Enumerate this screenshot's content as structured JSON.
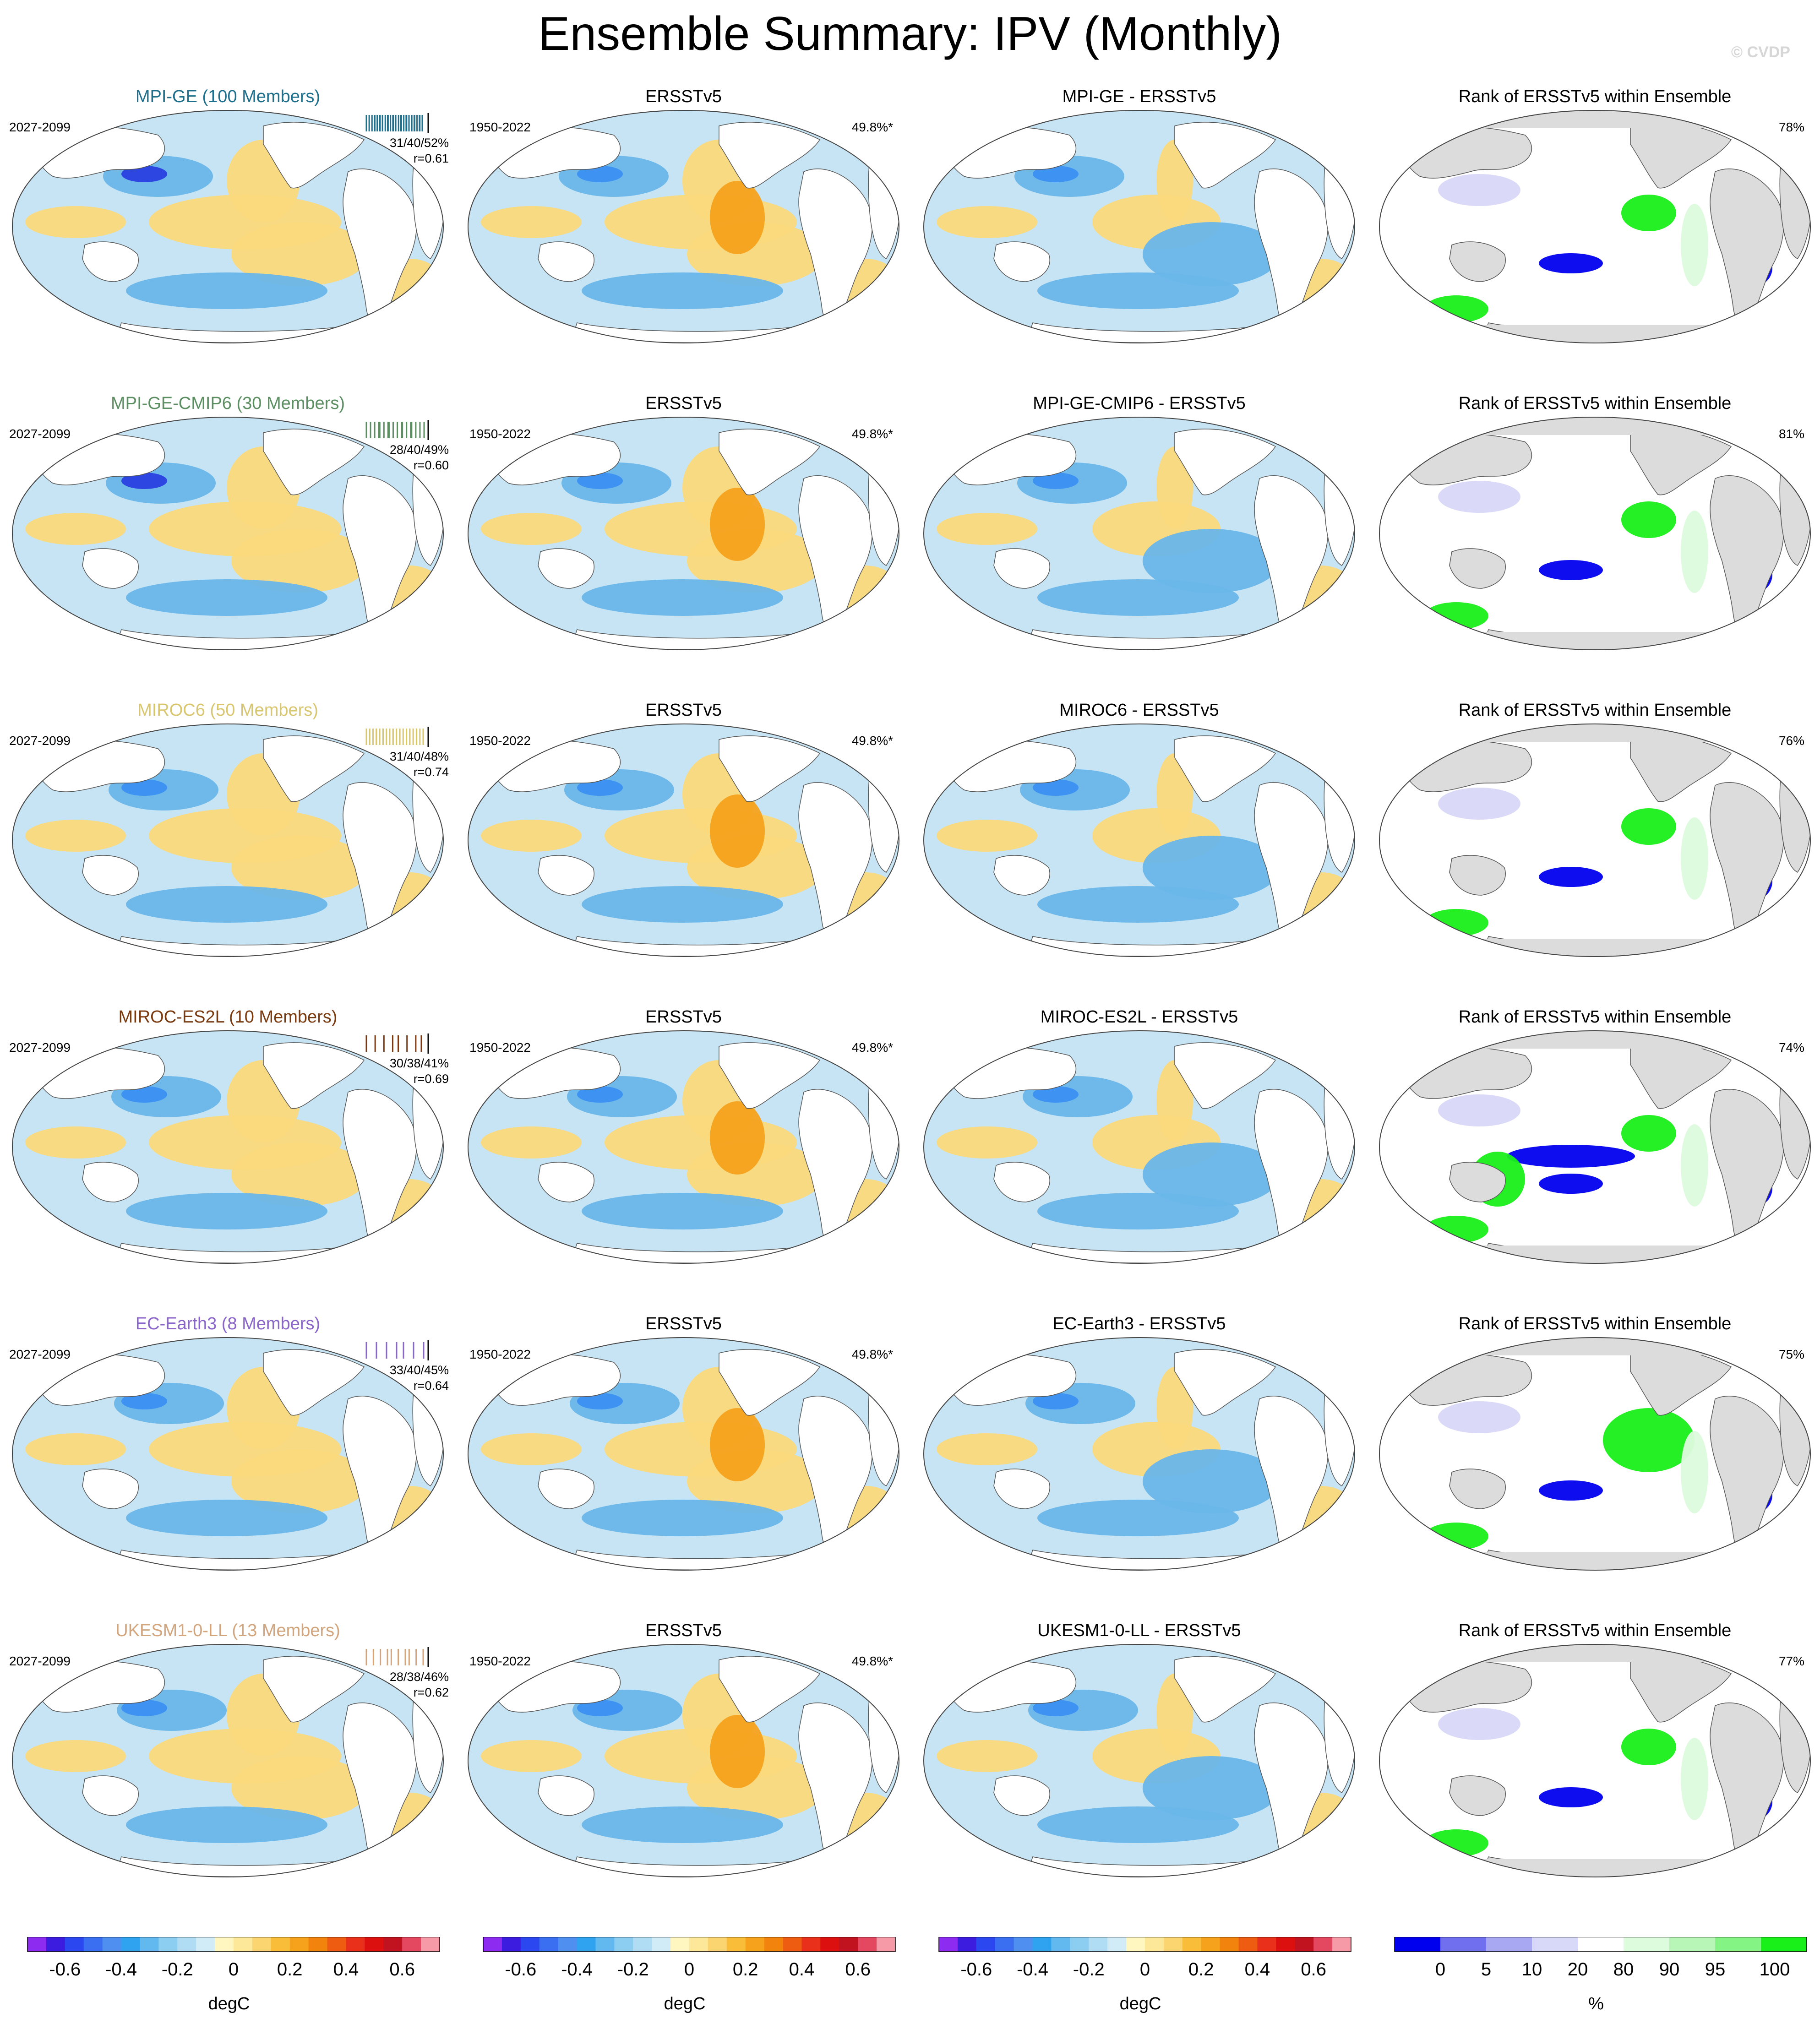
{
  "title": "Ensemble Summary: IPV (Monthly)",
  "watermark": "© CVDP",
  "column_titles": {
    "observed": "ERSSTv5",
    "rank": "Rank of ERSSTv5 within Ensemble"
  },
  "observed_period": "1950-2022",
  "observed_percent": "49.8%*",
  "colors": {
    "map_ocean_neutral": "#c6e4f4",
    "land": "#ffffff",
    "rank_land": "#dcdcdc",
    "positive": "#fbd97c",
    "negative": "#69b6e9"
  },
  "rows": [
    {
      "model": "MPI-GE (100 Members)",
      "color": "#1d6f8c",
      "period": "2027-2099",
      "stats_line1": "31/40/52%",
      "stats_line2": "r=0.61",
      "diff_title": "MPI-GE - ERSSTv5",
      "rank_pct": "78%"
    },
    {
      "model": "MPI-GE-CMIP6 (30 Members)",
      "color": "#5b8f62",
      "period": "2027-2099",
      "stats_line1": "28/40/49%",
      "stats_line2": "r=0.60",
      "diff_title": "MPI-GE-CMIP6 - ERSSTv5",
      "rank_pct": "81%"
    },
    {
      "model": "MIROC6 (50 Members)",
      "color": "#d8c670",
      "period": "2027-2099",
      "stats_line1": "31/40/48%",
      "stats_line2": "r=0.74",
      "diff_title": "MIROC6 - ERSSTv5",
      "rank_pct": "76%"
    },
    {
      "model": "MIROC-ES2L (10 Members)",
      "color": "#7a3a10",
      "period": "2027-2099",
      "stats_line1": "30/38/41%",
      "stats_line2": "r=0.69",
      "diff_title": "MIROC-ES2L - ERSSTv5",
      "rank_pct": "74%"
    },
    {
      "model": "EC-Earth3 (8 Members)",
      "color": "#8a66c8",
      "period": "2027-2099",
      "stats_line1": "33/40/45%",
      "stats_line2": "r=0.64",
      "diff_title": "EC-Earth3 - ERSSTv5",
      "rank_pct": "75%"
    },
    {
      "model": "UKESM1-0-LL (13 Members)",
      "color": "#d3a57c",
      "period": "2027-2099",
      "stats_line1": "28/38/46%",
      "stats_line2": "r=0.62",
      "diff_title": "UKESM1-0-LL - ERSSTv5",
      "rank_pct": "77%"
    }
  ],
  "chart_data": {
    "type": "heatmap",
    "panels": "6 rows x 4 columns of global maps (model pattern, observed pattern, difference, rank)",
    "colorbars": [
      {
        "units": "degC",
        "tick_labels": [
          "-0.6",
          "-0.4",
          "-0.2",
          "0",
          "0.2",
          "0.4",
          "0.6"
        ],
        "colors": [
          "#8e2bf0",
          "#3c1de0",
          "#2a47f0",
          "#3a6ff2",
          "#4e8ff0",
          "#2fa2f0",
          "#62b9f0",
          "#8ccdf2",
          "#b0ddf4",
          "#d2ecf7",
          "#fff6c0",
          "#fde89a",
          "#fbd570",
          "#f9bd3a",
          "#f6a21c",
          "#f2840e",
          "#ee5c12",
          "#e8301a",
          "#dd1010",
          "#c0131f",
          "#e44860",
          "#f59aa6"
        ]
      },
      {
        "units": "%",
        "tick_labels": [
          "0",
          "5",
          "10",
          "20",
          "80",
          "90",
          "95",
          "100"
        ],
        "colors": [
          "#0000ee",
          "#6f6ff0",
          "#a8a8f2",
          "#d8d8f8",
          "#ffffff",
          "#ddfbdd",
          "#b8f6b8",
          "#84f484",
          "#19ef19"
        ]
      }
    ]
  }
}
